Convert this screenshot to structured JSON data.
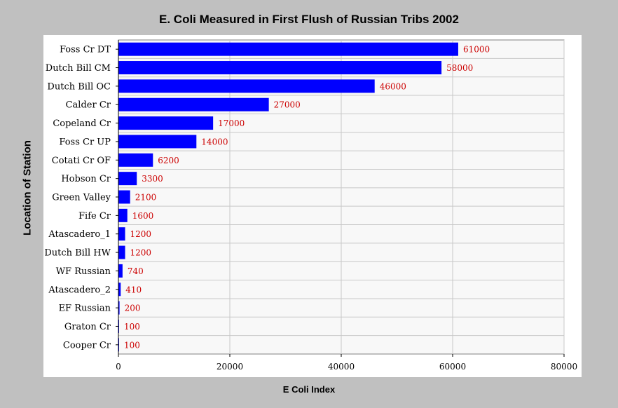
{
  "chart_data": {
    "type": "bar",
    "orientation": "horizontal",
    "title": "E. Coli Measured in First Flush of Russian Tribs 2002",
    "xlabel": "E Coli Index",
    "ylabel": "Location of Station",
    "xlim": [
      0,
      80000
    ],
    "xticks": [
      "0",
      "20000",
      "40000",
      "60000",
      "80000"
    ],
    "grid": true,
    "categories": [
      "Foss Cr DT",
      "Dutch Bill CM",
      "Dutch Bill OC",
      "Calder Cr",
      "Copeland Cr",
      "Foss Cr UP",
      "Cotati Cr OF",
      "Hobson Cr",
      "Green Valley",
      "Fife Cr",
      "Atascadero_1",
      "Dutch Bill HW",
      "WF Russian",
      "Atascadero_2",
      "EF Russian",
      "Graton Cr",
      "Cooper Cr"
    ],
    "values": [
      61000,
      58000,
      46000,
      27000,
      17000,
      14000,
      6200,
      3300,
      2100,
      1600,
      1200,
      1200,
      740,
      410,
      200,
      100,
      100
    ],
    "value_labels": [
      "61000",
      "58000",
      "46000",
      "27000",
      "17000",
      "14000",
      "6200",
      "3300",
      "2100",
      "1600",
      "1200",
      "1200",
      "740",
      "410",
      "200",
      "100",
      "100"
    ],
    "colors": {
      "bar": "#0000ff",
      "value_label": "#cc0000",
      "plot_bg": "#f8f8f8",
      "grid": "#c8c8c8"
    }
  }
}
